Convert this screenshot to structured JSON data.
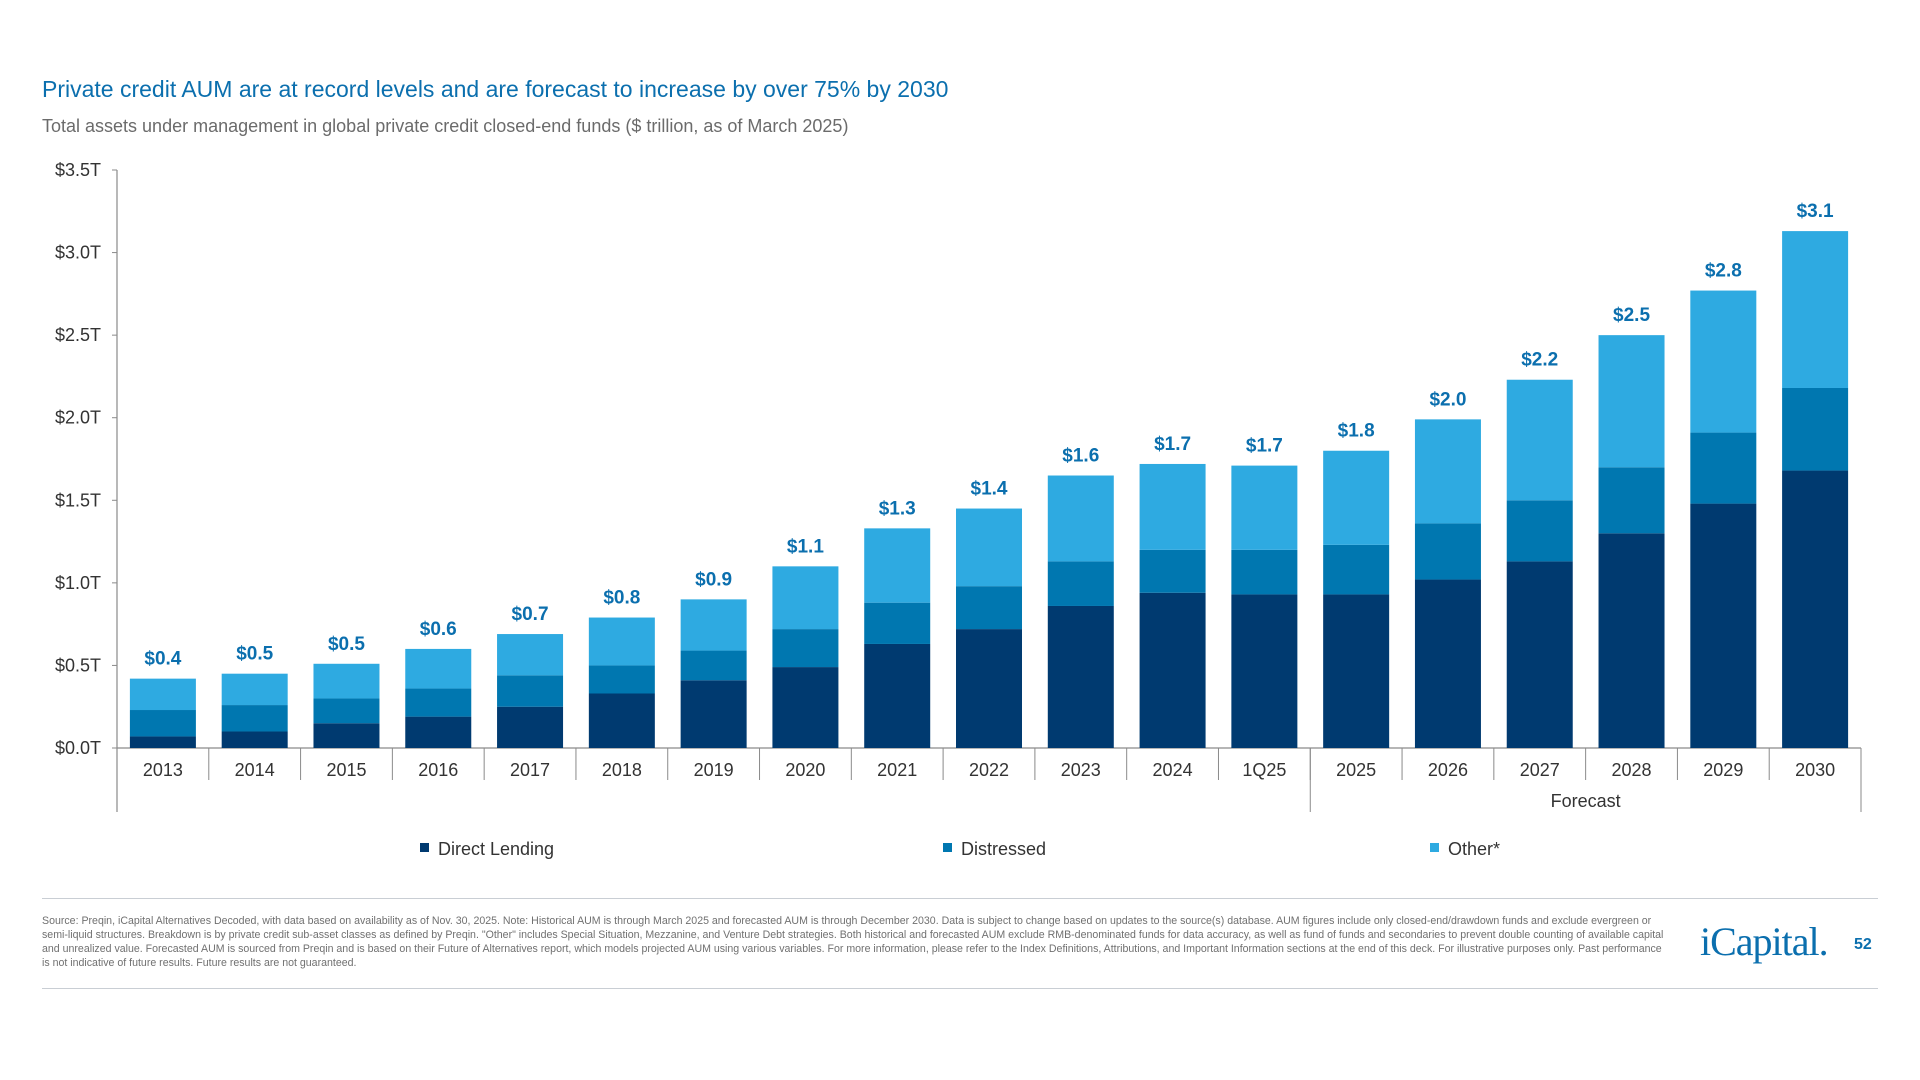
{
  "title": "Private credit AUM are at record levels and are forecast to increase by over 75% by 2030",
  "subtitle": "Total assets under management in global private credit closed-end funds ($ trillion, as of March 2025)",
  "chart_data": {
    "type": "bar",
    "stacked": true,
    "categories": [
      "2013",
      "2014",
      "2015",
      "2016",
      "2017",
      "2018",
      "2019",
      "2020",
      "2021",
      "2022",
      "2023",
      "2024",
      "1Q25",
      "2025",
      "2026",
      "2027",
      "2028",
      "2029",
      "2030"
    ],
    "series": [
      {
        "name": "Direct Lending",
        "color": "#003a70",
        "values": [
          0.07,
          0.1,
          0.15,
          0.19,
          0.25,
          0.33,
          0.41,
          0.49,
          0.63,
          0.72,
          0.86,
          0.94,
          0.93,
          0.93,
          1.02,
          1.13,
          1.3,
          1.48,
          1.68
        ]
      },
      {
        "name": "Distressed",
        "color": "#0077b0",
        "values": [
          0.16,
          0.16,
          0.15,
          0.17,
          0.19,
          0.17,
          0.18,
          0.23,
          0.25,
          0.26,
          0.27,
          0.26,
          0.27,
          0.3,
          0.34,
          0.37,
          0.4,
          0.43,
          0.5
        ]
      },
      {
        "name": "Other*",
        "color": "#2eaae1",
        "values": [
          0.19,
          0.19,
          0.21,
          0.24,
          0.25,
          0.29,
          0.31,
          0.38,
          0.45,
          0.47,
          0.52,
          0.52,
          0.51,
          0.57,
          0.63,
          0.73,
          0.8,
          0.86,
          0.95
        ]
      }
    ],
    "data_labels": [
      "$0.4",
      "$0.5",
      "$0.5",
      "$0.6",
      "$0.7",
      "$0.8",
      "$0.9",
      "$1.1",
      "$1.3",
      "$1.4",
      "$1.6",
      "$1.7",
      "$1.7",
      "$1.8",
      "$2.0",
      "$2.2",
      "$2.5",
      "$2.8",
      "$3.1"
    ],
    "y_ticks": [
      "$0.0T",
      "$0.5T",
      "$1.0T",
      "$1.5T",
      "$2.0T",
      "$2.5T",
      "$3.0T",
      "$3.5T"
    ],
    "ylim": [
      0,
      3.5
    ],
    "forecast_label": "Forecast",
    "forecast_categories": [
      "2025",
      "2026",
      "2027",
      "2028",
      "2029",
      "2030"
    ],
    "grid": false,
    "legend_position": "bottom",
    "label_color": "#0b6fae"
  },
  "footer": {
    "source": "Source: Preqin, iCapital Alternatives Decoded, with data based on availability as of Nov. 30, 2025. Note: Historical AUM is through March 2025 and forecasted AUM is through December 2030. Data is subject to change based on updates to the source(s) database. AUM figures include only closed-end/drawdown funds and exclude evergreen or semi-liquid structures. Breakdown is by private credit sub-asset classes as defined by Preqin. \"Other\" includes Special Situation, Mezzanine, and Venture Debt strategies. Both historical and forecasted AUM exclude RMB-denominated funds for data accuracy, as well as fund of funds and secondaries to prevent double counting of available capital and unrealized value. Forecasted AUM is sourced from Preqin and is based on their Future of Alternatives report, which models projected AUM using various variables. For more information, please refer to the Index Definitions, Attributions, and Important Information sections at the end of this deck. For illustrative purposes only. Past performance is not indicative of future results. Future results are not guaranteed.",
    "logo": "iCapital",
    "page_number": "52"
  }
}
